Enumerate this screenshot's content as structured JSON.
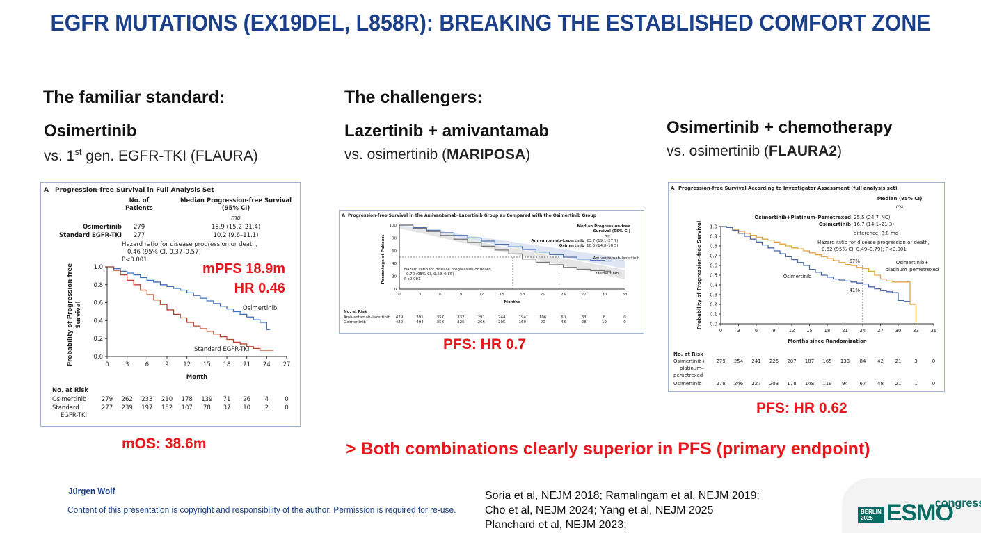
{
  "title": "EGFR MUTATIONS (EX19DEL, L858R): BREAKING THE ESTABLISHED COMFORT ZONE",
  "left": {
    "header": "The familiar standard:",
    "drug": "Osimertinib",
    "comparison_pre": "vs. 1",
    "comparison_sup": "st",
    "comparison_post": " gen. EGFR-TKI (FLAURA)",
    "overlay_mpfs": "mPFS 18.9m",
    "overlay_hr": "HR 0.46",
    "mos": "mOS: 38.6m",
    "figure": {
      "panel_title": "Progression-free Survival in Full Analysis Set",
      "panel_letter": "A",
      "col_patients": "No. of",
      "col_patients2": "Patients",
      "col_median": "Median Progression-free Survival",
      "col_median2": "(95% CI)",
      "unit": "mo",
      "rows": [
        {
          "name": "Osimertinib",
          "n": "279",
          "median": "18.9 (15.2–21.4)"
        },
        {
          "name": "Standard EGFR-TKI",
          "n": "277",
          "median": "10.2 (9.6–11.1)"
        }
      ],
      "hr_line1": "Hazard ratio for disease progression or death,",
      "hr_line2": "0.46 (95% CI, 0.37–0.57)",
      "hr_line3": "P<0.001",
      "y_label1": "Probability of Progression-free",
      "y_label2": "Survival",
      "y_ticks": [
        "0.0",
        "0.2",
        "0.4",
        "0.6",
        "0.8",
        "1.0"
      ],
      "x_ticks": [
        "0",
        "3",
        "6",
        "9",
        "12",
        "15",
        "18",
        "21",
        "24",
        "27"
      ],
      "x_label": "Month",
      "curve_label_a": "Osimertinib",
      "curve_label_b": "Standard EGFR-TKI",
      "risk_title": "No. at Risk",
      "risk_rows": [
        {
          "name": "Osimertinib",
          "values": [
            "279",
            "262",
            "233",
            "210",
            "178",
            "139",
            "71",
            "26",
            "4",
            "0"
          ]
        },
        {
          "name": "Standard",
          "name2": "EGFR-TKI",
          "values": [
            "277",
            "239",
            "197",
            "152",
            "107",
            "78",
            "37",
            "10",
            "2",
            "0"
          ]
        }
      ]
    }
  },
  "middle": {
    "header": "The challengers:",
    "drug": "Lazertinib + amivantamab",
    "comparison_pre": "vs. osimertinib (",
    "comparison_bold": "MARIPOSA",
    "comparison_post": ")",
    "pfs": "PFS: HR 0.7",
    "figure": {
      "panel_title": "Progression-free Survival in the Amivantamab–Lazertinib Group as Compared with the Osimertinib Group",
      "panel_letter": "A",
      "legend_title1": "Median Progression-free",
      "legend_title2": "Survival (95% CI)",
      "unit": "mo",
      "rows": [
        {
          "name": "Amivantamab–Lazertinib",
          "median": "23.7 (19.1–27.7)"
        },
        {
          "name": "Osimertinib",
          "median": "16.6 (14.8–18.5)"
        }
      ],
      "hr_line1": "Hazard ratio for disease progression or death,",
      "hr_line2": "0.70 (95% CI, 0.58–0.85)",
      "hr_line3": "P<0.001",
      "y_label": "Percentage of Patients",
      "y_ticks": [
        "0",
        "20",
        "40",
        "60",
        "80",
        "100"
      ],
      "x_ticks": [
        "0",
        "3",
        "6",
        "9",
        "12",
        "15",
        "18",
        "21",
        "24",
        "27",
        "30",
        "33"
      ],
      "x_label": "Months",
      "curve_label_a": "Amivantamab–lazertinib",
      "curve_label_b": "Osimertinib",
      "risk_title": "No. at Risk",
      "risk_rows": [
        {
          "name": "Amivantamab–lazertinib",
          "values": [
            "429",
            "391",
            "357",
            "332",
            "291",
            "244",
            "194",
            "106",
            "60",
            "33",
            "8",
            "0"
          ]
        },
        {
          "name": "Osimertinib",
          "values": [
            "429",
            "404",
            "358",
            "325",
            "266",
            "205",
            "160",
            "90",
            "48",
            "28",
            "10",
            "0"
          ]
        }
      ]
    }
  },
  "right": {
    "drug": "Osimertinib + chemotherapy",
    "comparison_pre": "vs. osimertinib (",
    "comparison_bold": "FLAURA2",
    "comparison_post": ")",
    "pfs": "PFS: HR 0.62",
    "figure": {
      "panel_title": "Progression-free Survival According to Investigator Assessment (full analysis set)",
      "panel_letter": "A",
      "legend_title1": "Median (95% CI)",
      "unit": "mo",
      "rows": [
        {
          "name": "Osimertinib+Platinum–Pemetrexed",
          "median": "25.5 (24.7–NC)"
        },
        {
          "name": "Osimertinib",
          "median": "16.7 (14.1–21.3)"
        }
      ],
      "diff": "difference, 8.8 mo",
      "hr_line1": "Hazard ratio for disease progression or death,",
      "hr_line2": "0.62 (95% CI, 0.49–0.79); P<0.001",
      "y_label": "Probability of Progression-free Survival",
      "y_ticks": [
        "0.0",
        "0.1",
        "0.2",
        "0.3",
        "0.4",
        "0.5",
        "0.6",
        "0.7",
        "0.8",
        "0.9",
        "1.0"
      ],
      "x_ticks": [
        "0",
        "3",
        "6",
        "9",
        "12",
        "15",
        "18",
        "21",
        "24",
        "27",
        "30",
        "33",
        "36"
      ],
      "x_label": "Months since Randomization",
      "pct_a": "57%",
      "pct_b": "41%",
      "curve_label_a1": "Osimertinib+",
      "curve_label_a2": "platinum–pemetrexed",
      "curve_label_b": "Osimertinib",
      "risk_title": "No. at Risk",
      "risk_rows": [
        {
          "name": "Osimertinib+",
          "name2": "platinum–",
          "name3": "pemetrexed",
          "values": [
            "279",
            "254",
            "241",
            "225",
            "207",
            "187",
            "165",
            "133",
            "84",
            "42",
            "21",
            "3",
            "0"
          ]
        },
        {
          "name": "Osimertinib",
          "values": [
            "278",
            "246",
            "227",
            "203",
            "178",
            "148",
            "119",
            "94",
            "67",
            "48",
            "21",
            "1",
            "0"
          ]
        }
      ]
    }
  },
  "conclusion": "> Both combinations clearly superior in PFS (primary endpoint)",
  "footer": {
    "author": "Jürgen Wolf",
    "copyright": "Content of this presentation is copyright and responsibility of the author. Permission is required for re-use.",
    "refs": [
      "Soria et al, NEJM 2018; Ramalingam et al, NEJM 2019;",
      "Cho et al, NEJM 2024; Yang et al, NEJM 2025",
      "Planchard et al, NEJM 2023;"
    ],
    "logo_city": "BERLIN",
    "logo_year": "2025",
    "logo_word": "ESMO",
    "logo_congress": "congress"
  },
  "colors": {
    "title": "#1c3f8a",
    "red": "#e3191d",
    "curve_blue": "#3f6fbf",
    "curve_red": "#b5462a",
    "curve_gray": "#777777",
    "curve_orange": "#e3a040",
    "esmo": "#0a6b63"
  }
}
